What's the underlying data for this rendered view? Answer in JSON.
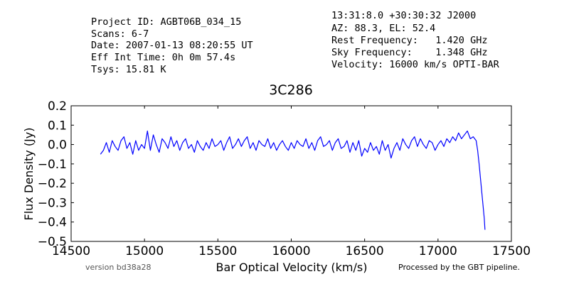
{
  "header": {
    "left": [
      "Project ID: AGBT06B_034_15",
      "Scans: 6-7",
      "Date: 2007-01-13 08:20:55 UT",
      "Eff Int Time: 0h 0m 57.4s",
      "Tsys: 15.81 K"
    ],
    "right": [
      "13:31:8.0 +30:30:32 J2000",
      "AZ: 88.3, EL: 52.4",
      "Rest Frequency:   1.420 GHz",
      "Sky Frequency:    1.348 GHz",
      "Velocity: 16000 km/s OPTI-BAR"
    ]
  },
  "footer": {
    "version": "version bd38a28",
    "pipeline": "Processed by the GBT pipeline.",
    "pipeline_color": "#ff4444"
  },
  "chart_data": {
    "type": "line",
    "title": "3C286",
    "xlabel": "Bar Optical Velocity (km/s)",
    "ylabel": "Flux Density (Jy)",
    "xlim": [
      14500,
      17500
    ],
    "ylim": [
      -0.5,
      0.2
    ],
    "xticks": [
      14500,
      15000,
      15500,
      16000,
      16500,
      17000,
      17500
    ],
    "yticks": [
      -0.5,
      -0.4,
      -0.3,
      -0.2,
      -0.1,
      0.0,
      0.1,
      0.2
    ],
    "ytick_labels": [
      "−0.5",
      "−0.4",
      "−0.3",
      "−0.2",
      "−0.1",
      "0.0",
      "0.1",
      "0.2"
    ],
    "grid": false,
    "series": [
      {
        "color": "#0000ff",
        "x": [
          14700,
          14720,
          14740,
          14760,
          14780,
          14800,
          14820,
          14840,
          14860,
          14880,
          14900,
          14920,
          14940,
          14960,
          14980,
          15000,
          15020,
          15040,
          15060,
          15080,
          15100,
          15120,
          15140,
          15160,
          15180,
          15200,
          15220,
          15240,
          15260,
          15280,
          15300,
          15320,
          15340,
          15360,
          15380,
          15400,
          15420,
          15440,
          15460,
          15480,
          15500,
          15520,
          15540,
          15560,
          15580,
          15600,
          15620,
          15640,
          15660,
          15680,
          15700,
          15720,
          15740,
          15760,
          15780,
          15800,
          15820,
          15840,
          15860,
          15880,
          15900,
          15920,
          15940,
          15960,
          15980,
          16000,
          16020,
          16040,
          16060,
          16080,
          16100,
          16120,
          16140,
          16160,
          16180,
          16200,
          16220,
          16240,
          16260,
          16280,
          16300,
          16320,
          16340,
          16360,
          16380,
          16400,
          16420,
          16440,
          16460,
          16480,
          16500,
          16520,
          16540,
          16560,
          16580,
          16600,
          16620,
          16640,
          16660,
          16680,
          16700,
          16720,
          16740,
          16760,
          16780,
          16800,
          16820,
          16840,
          16860,
          16880,
          16900,
          16920,
          16940,
          16960,
          16980,
          17000,
          17020,
          17040,
          17060,
          17080,
          17100,
          17120,
          17140,
          17160,
          17180,
          17200,
          17220,
          17240,
          17260,
          17270,
          17280,
          17290,
          17300,
          17310,
          17315,
          17320
        ],
        "y": [
          -0.05,
          -0.03,
          0.01,
          -0.04,
          0.02,
          -0.01,
          -0.03,
          0.02,
          0.04,
          -0.02,
          0.01,
          -0.05,
          0.02,
          -0.03,
          0.0,
          -0.02,
          0.07,
          -0.03,
          0.05,
          0.0,
          -0.04,
          0.03,
          0.01,
          -0.02,
          0.04,
          -0.01,
          0.02,
          -0.03,
          0.01,
          0.03,
          -0.02,
          0.0,
          -0.04,
          0.02,
          -0.01,
          -0.03,
          0.01,
          -0.02,
          0.03,
          -0.01,
          0.0,
          0.02,
          -0.03,
          0.01,
          0.04,
          -0.02,
          0.0,
          0.03,
          -0.01,
          0.02,
          0.04,
          -0.02,
          0.01,
          -0.03,
          0.02,
          0.0,
          -0.01,
          0.03,
          -0.02,
          0.01,
          -0.03,
          0.0,
          0.02,
          -0.01,
          -0.03,
          0.01,
          -0.02,
          0.02,
          0.0,
          -0.01,
          0.03,
          -0.02,
          0.01,
          -0.03,
          0.02,
          0.04,
          -0.01,
          0.0,
          0.02,
          -0.03,
          0.01,
          0.03,
          -0.02,
          -0.01,
          0.02,
          -0.04,
          0.01,
          -0.03,
          0.02,
          -0.06,
          -0.02,
          -0.04,
          0.01,
          -0.03,
          -0.01,
          -0.05,
          0.02,
          -0.03,
          0.0,
          -0.07,
          -0.02,
          0.01,
          -0.03,
          0.03,
          0.0,
          -0.02,
          0.02,
          0.04,
          -0.01,
          0.03,
          0.0,
          -0.02,
          0.02,
          0.01,
          -0.03,
          0.0,
          0.02,
          -0.01,
          0.03,
          0.01,
          0.04,
          0.02,
          0.06,
          0.03,
          0.05,
          0.07,
          0.03,
          0.04,
          0.02,
          -0.03,
          -0.1,
          -0.18,
          -0.26,
          -0.34,
          -0.38,
          -0.44
        ]
      }
    ]
  }
}
